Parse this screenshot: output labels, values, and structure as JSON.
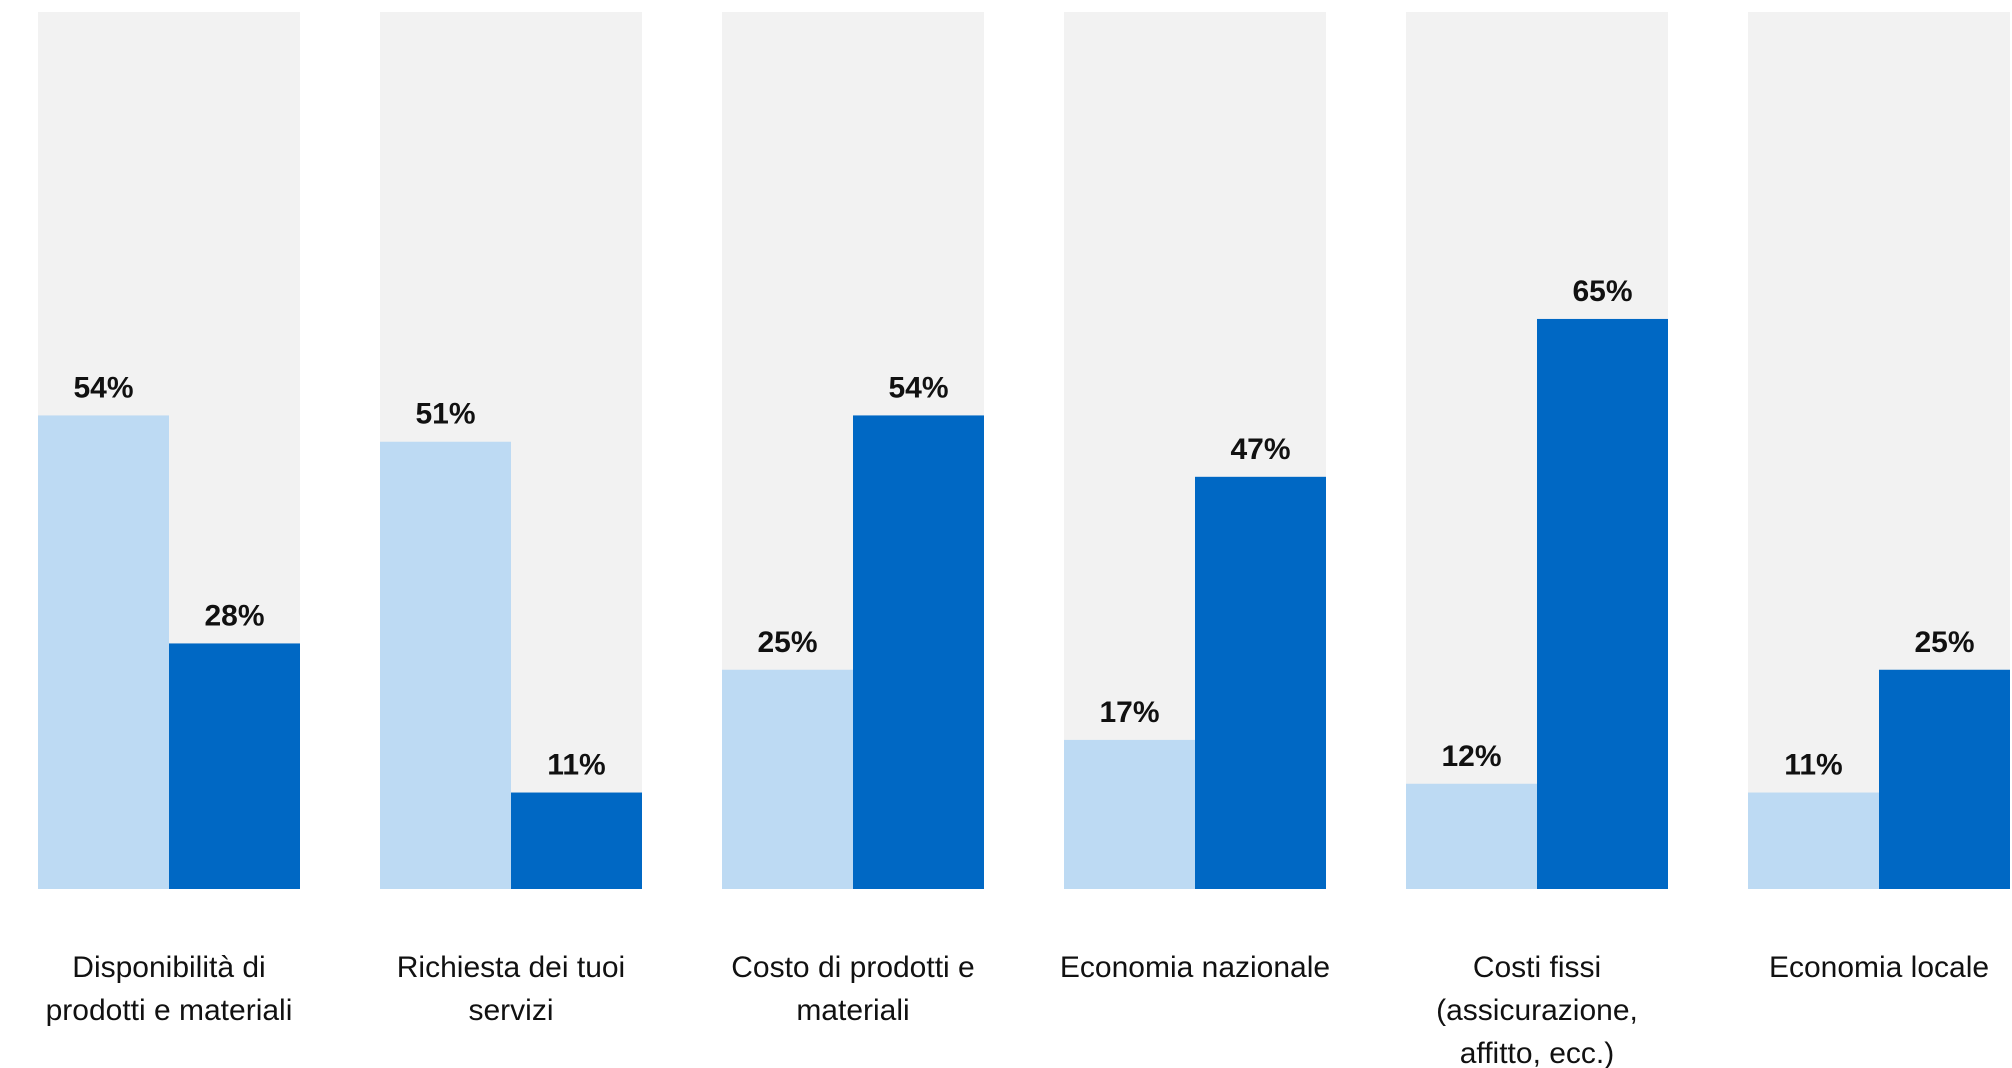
{
  "chart_data": {
    "type": "bar",
    "categories": [
      [
        "Disponibilità di",
        "prodotti e materiali"
      ],
      [
        "Richiesta dei tuoi",
        "servizi"
      ],
      [
        "Costo di prodotti e",
        "materiali"
      ],
      [
        "Economia nazionale"
      ],
      [
        "Costi fissi",
        "(assicurazione,",
        "affitto, ecc.)"
      ],
      [
        "Economia locale"
      ]
    ],
    "series": [
      {
        "values": [
          54,
          51,
          25,
          17,
          12,
          11
        ],
        "labels": [
          "54%",
          "51%",
          "25%",
          "17%",
          "12%",
          "11%"
        ],
        "color": "#BDDAF3"
      },
      {
        "values": [
          28,
          11,
          54,
          47,
          65,
          25
        ],
        "labels": [
          "28%",
          "11%",
          "54%",
          "47%",
          "65%",
          "25%"
        ],
        "color": "#0068C4"
      }
    ],
    "ylim": [
      0,
      100
    ],
    "background_color": "#F2F2F2",
    "legend": "none",
    "grid": false
  }
}
